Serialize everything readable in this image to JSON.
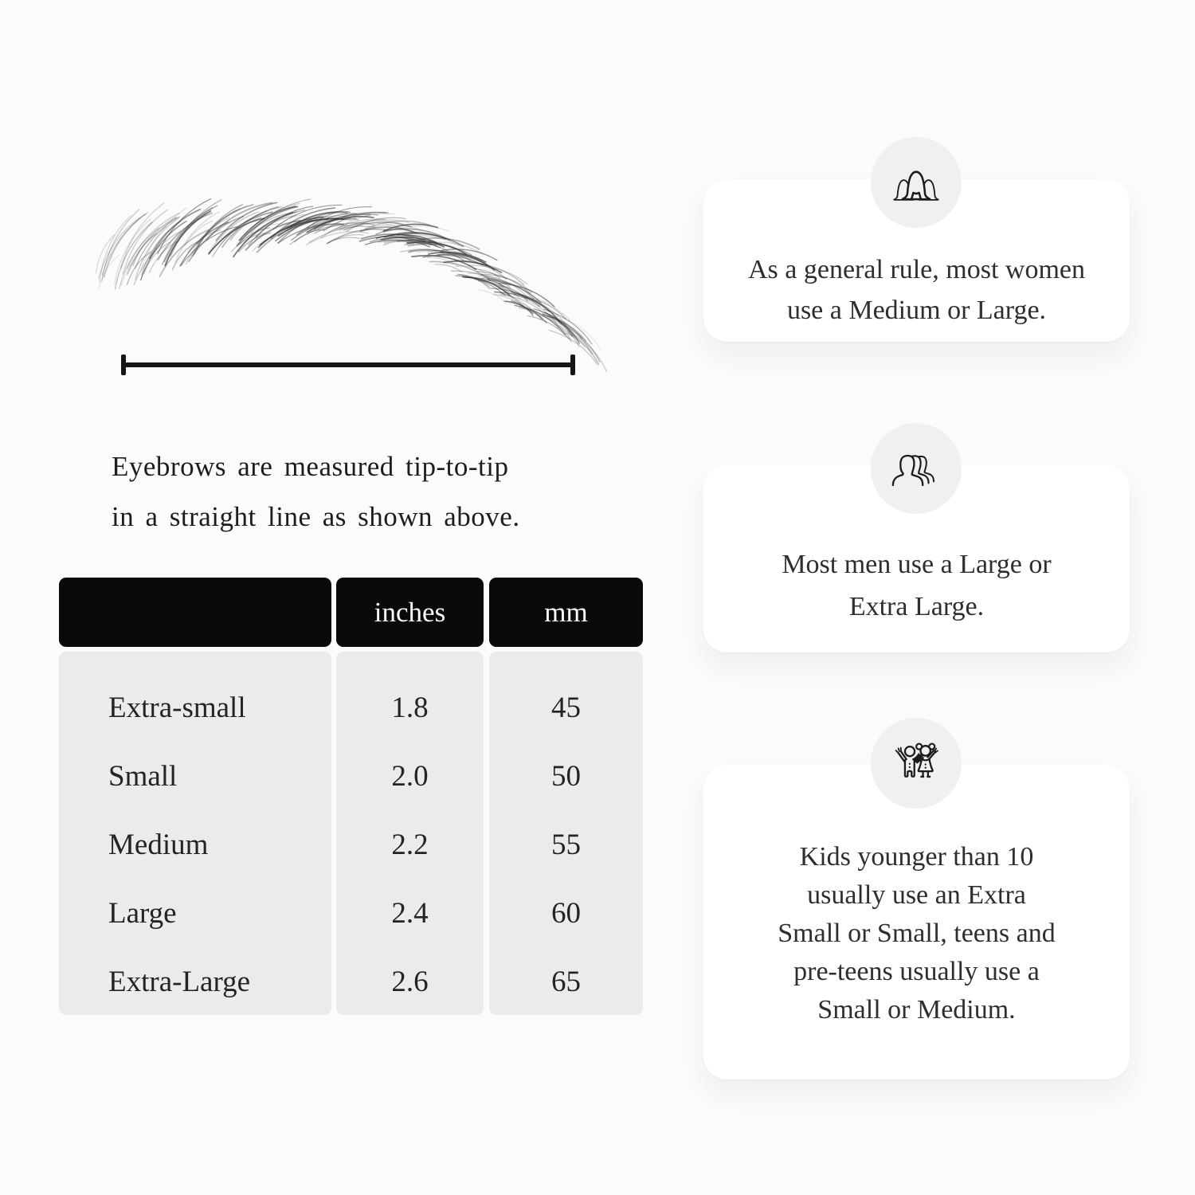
{
  "page": {
    "background": "#fbfbfb",
    "card_color": "#ffffff",
    "badge_color": "#f0f0f0",
    "table_header_color": "#0a0a0a",
    "table_body_color": "#ebebeb",
    "text_color": "#1f1f1f"
  },
  "measurement": {
    "illustration": "eyebrow-sketch",
    "line": "tip-to-tip-measurement-line",
    "caption_lines": [
      "Eyebrows are measured tip-to-tip",
      "in a straight line as shown above."
    ]
  },
  "size_table": {
    "columns": [
      "",
      "inches",
      "mm"
    ],
    "rows": [
      {
        "label": "Extra-small",
        "inches": "1.8",
        "mm": "45"
      },
      {
        "label": "Small",
        "inches": "2.0",
        "mm": "50"
      },
      {
        "label": "Medium",
        "inches": "2.2",
        "mm": "55"
      },
      {
        "label": "Large",
        "inches": "2.4",
        "mm": "60"
      },
      {
        "label": "Extra-Large",
        "inches": "2.6",
        "mm": "65"
      }
    ]
  },
  "cards": [
    {
      "icon": "women-group-icon",
      "lines": [
        "As a general rule, most women",
        "use a Medium or Large."
      ]
    },
    {
      "icon": "men-group-icon",
      "lines": [
        "Most men use a Large or",
        "Extra Large."
      ]
    },
    {
      "icon": "kids-icon",
      "lines": [
        "Kids younger than 10",
        "usually use an Extra",
        "Small or Small, teens and",
        "pre-teens usually use a",
        "Small or Medium."
      ]
    }
  ]
}
